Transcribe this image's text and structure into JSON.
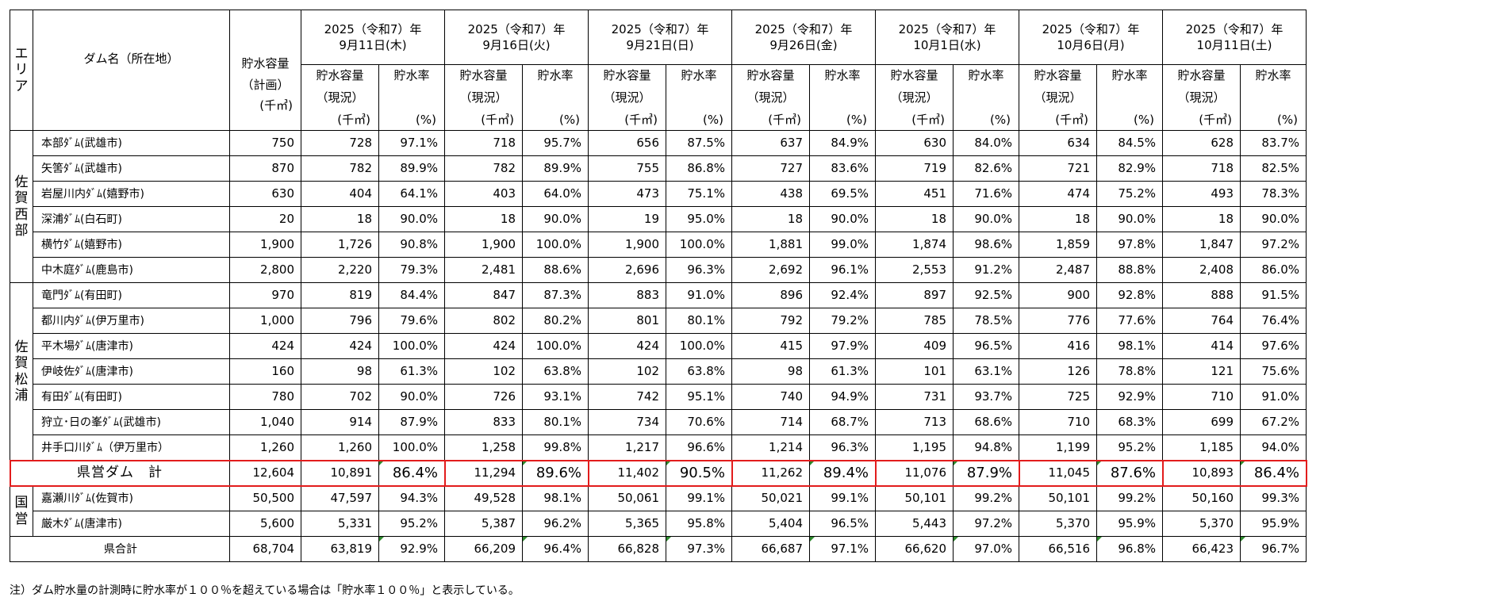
{
  "header": {
    "area_label": "エリア",
    "dam_label": "ダム名（所在地）",
    "plan_capacity_line1": "貯水容量",
    "plan_capacity_line2": "（計画）",
    "capacity_line1": "貯水容量",
    "capacity_line2": "（現況）",
    "rate_label": "貯水率",
    "unit_volume": "(千㎥)",
    "unit_percent": "(%)",
    "dates": [
      {
        "year": "2025（令和7）年",
        "day": "9月11日(木)"
      },
      {
        "year": "2025（令和7）年",
        "day": "9月16日(火)"
      },
      {
        "year": "2025（令和7）年",
        "day": "9月21日(日)"
      },
      {
        "year": "2025（令和7）年",
        "day": "9月26日(金)"
      },
      {
        "year": "2025（令和7）年",
        "day": "10月1日(水)"
      },
      {
        "year": "2025（令和7）年",
        "day": "10月6日(月)"
      },
      {
        "year": "2025（令和7）年",
        "day": "10月11日(土)"
      }
    ]
  },
  "groups": [
    {
      "area": "佐賀西部",
      "rows": [
        {
          "dam": "本部ﾀﾞﾑ(武雄市)",
          "plan": "750",
          "values": [
            [
              "728",
              "97.1%"
            ],
            [
              "718",
              "95.7%"
            ],
            [
              "656",
              "87.5%"
            ],
            [
              "637",
              "84.9%"
            ],
            [
              "630",
              "84.0%"
            ],
            [
              "634",
              "84.5%"
            ],
            [
              "628",
              "83.7%"
            ]
          ]
        },
        {
          "dam": "矢筈ﾀﾞﾑ(武雄市)",
          "plan": "870",
          "values": [
            [
              "782",
              "89.9%"
            ],
            [
              "782",
              "89.9%"
            ],
            [
              "755",
              "86.8%"
            ],
            [
              "727",
              "83.6%"
            ],
            [
              "719",
              "82.6%"
            ],
            [
              "721",
              "82.9%"
            ],
            [
              "718",
              "82.5%"
            ]
          ]
        },
        {
          "dam": "岩屋川内ﾀﾞﾑ(嬉野市)",
          "plan": "630",
          "values": [
            [
              "404",
              "64.1%"
            ],
            [
              "403",
              "64.0%"
            ],
            [
              "473",
              "75.1%"
            ],
            [
              "438",
              "69.5%"
            ],
            [
              "451",
              "71.6%"
            ],
            [
              "474",
              "75.2%"
            ],
            [
              "493",
              "78.3%"
            ]
          ]
        },
        {
          "dam": "深浦ﾀﾞﾑ(白石町)",
          "plan": "20",
          "values": [
            [
              "18",
              "90.0%"
            ],
            [
              "18",
              "90.0%"
            ],
            [
              "19",
              "95.0%"
            ],
            [
              "18",
              "90.0%"
            ],
            [
              "18",
              "90.0%"
            ],
            [
              "18",
              "90.0%"
            ],
            [
              "18",
              "90.0%"
            ]
          ]
        },
        {
          "dam": "横竹ﾀﾞﾑ(嬉野市)",
          "plan": "1,900",
          "values": [
            [
              "1,726",
              "90.8%"
            ],
            [
              "1,900",
              "100.0%"
            ],
            [
              "1,900",
              "100.0%"
            ],
            [
              "1,881",
              "99.0%"
            ],
            [
              "1,874",
              "98.6%"
            ],
            [
              "1,859",
              "97.8%"
            ],
            [
              "1,847",
              "97.2%"
            ]
          ]
        },
        {
          "dam": "中木庭ﾀﾞﾑ(鹿島市)",
          "plan": "2,800",
          "values": [
            [
              "2,220",
              "79.3%"
            ],
            [
              "2,481",
              "88.6%"
            ],
            [
              "2,696",
              "96.3%"
            ],
            [
              "2,692",
              "96.1%"
            ],
            [
              "2,553",
              "91.2%"
            ],
            [
              "2,487",
              "88.8%"
            ],
            [
              "2,408",
              "86.0%"
            ]
          ]
        }
      ]
    },
    {
      "area": "佐賀松浦",
      "rows": [
        {
          "dam": "竜門ﾀﾞﾑ(有田町)",
          "plan": "970",
          "values": [
            [
              "819",
              "84.4%"
            ],
            [
              "847",
              "87.3%"
            ],
            [
              "883",
              "91.0%"
            ],
            [
              "896",
              "92.4%"
            ],
            [
              "897",
              "92.5%"
            ],
            [
              "900",
              "92.8%"
            ],
            [
              "888",
              "91.5%"
            ]
          ]
        },
        {
          "dam": "都川内ﾀﾞﾑ(伊万里市)",
          "plan": "1,000",
          "values": [
            [
              "796",
              "79.6%"
            ],
            [
              "802",
              "80.2%"
            ],
            [
              "801",
              "80.1%"
            ],
            [
              "792",
              "79.2%"
            ],
            [
              "785",
              "78.5%"
            ],
            [
              "776",
              "77.6%"
            ],
            [
              "764",
              "76.4%"
            ]
          ]
        },
        {
          "dam": "平木場ﾀﾞﾑ(唐津市)",
          "plan": "424",
          "values": [
            [
              "424",
              "100.0%"
            ],
            [
              "424",
              "100.0%"
            ],
            [
              "424",
              "100.0%"
            ],
            [
              "415",
              "97.9%"
            ],
            [
              "409",
              "96.5%"
            ],
            [
              "416",
              "98.1%"
            ],
            [
              "414",
              "97.6%"
            ]
          ]
        },
        {
          "dam": "伊岐佐ﾀﾞﾑ(唐津市)",
          "plan": "160",
          "values": [
            [
              "98",
              "61.3%"
            ],
            [
              "102",
              "63.8%"
            ],
            [
              "102",
              "63.8%"
            ],
            [
              "98",
              "61.3%"
            ],
            [
              "101",
              "63.1%"
            ],
            [
              "126",
              "78.8%"
            ],
            [
              "121",
              "75.6%"
            ]
          ]
        },
        {
          "dam": "有田ﾀﾞﾑ(有田町)",
          "plan": "780",
          "values": [
            [
              "702",
              "90.0%"
            ],
            [
              "726",
              "93.1%"
            ],
            [
              "742",
              "95.1%"
            ],
            [
              "740",
              "94.9%"
            ],
            [
              "731",
              "93.7%"
            ],
            [
              "725",
              "92.9%"
            ],
            [
              "710",
              "91.0%"
            ]
          ]
        },
        {
          "dam": "狩立･日の峯ﾀﾞﾑ(武雄市)",
          "plan": "1,040",
          "values": [
            [
              "914",
              "87.9%"
            ],
            [
              "833",
              "80.1%"
            ],
            [
              "734",
              "70.6%"
            ],
            [
              "714",
              "68.7%"
            ],
            [
              "713",
              "68.6%"
            ],
            [
              "710",
              "68.3%"
            ],
            [
              "699",
              "67.2%"
            ]
          ]
        },
        {
          "dam": "井手口川ﾀﾞﾑ（伊万里市）",
          "plan": "1,260",
          "values": [
            [
              "1,260",
              "100.0%"
            ],
            [
              "1,258",
              "99.8%"
            ],
            [
              "1,217",
              "96.6%"
            ],
            [
              "1,214",
              "96.3%"
            ],
            [
              "1,195",
              "94.8%"
            ],
            [
              "1,199",
              "95.2%"
            ],
            [
              "1,185",
              "94.0%"
            ]
          ]
        }
      ]
    }
  ],
  "kenei_total": {
    "label": "県営ダム　計",
    "plan": "12,604",
    "values": [
      [
        "10,891",
        "86.4%"
      ],
      [
        "11,294",
        "89.6%"
      ],
      [
        "11,402",
        "90.5%"
      ],
      [
        "11,262",
        "89.4%"
      ],
      [
        "11,076",
        "87.9%"
      ],
      [
        "11,045",
        "87.6%"
      ],
      [
        "10,893",
        "86.4%"
      ]
    ]
  },
  "national": {
    "area": "国営",
    "rows": [
      {
        "dam": "嘉瀬川ﾀﾞﾑ(佐賀市)",
        "plan": "50,500",
        "values": [
          [
            "47,597",
            "94.3%"
          ],
          [
            "49,528",
            "98.1%"
          ],
          [
            "50,061",
            "99.1%"
          ],
          [
            "50,021",
            "99.1%"
          ],
          [
            "50,101",
            "99.2%"
          ],
          [
            "50,101",
            "99.2%"
          ],
          [
            "50,160",
            "99.3%"
          ]
        ]
      },
      {
        "dam": "厳木ﾀﾞﾑ(唐津市)",
        "plan": "5,600",
        "values": [
          [
            "5,331",
            "95.2%"
          ],
          [
            "5,387",
            "96.2%"
          ],
          [
            "5,365",
            "95.8%"
          ],
          [
            "5,404",
            "96.5%"
          ],
          [
            "5,443",
            "97.2%"
          ],
          [
            "5,370",
            "95.9%"
          ],
          [
            "5,370",
            "95.9%"
          ]
        ]
      }
    ]
  },
  "prefecture_total": {
    "label": "県合計",
    "plan": "68,704",
    "values": [
      [
        "63,819",
        "92.9%"
      ],
      [
        "66,209",
        "96.4%"
      ],
      [
        "66,828",
        "97.3%"
      ],
      [
        "66,687",
        "97.1%"
      ],
      [
        "66,620",
        "97.0%"
      ],
      [
        "66,516",
        "96.8%"
      ],
      [
        "66,423",
        "96.7%"
      ]
    ]
  },
  "note": "注）ダム貯水量の計測時に貯水率が１００％を超えている場合は「貯水率１００％」と表示している。",
  "colors": {
    "highlight_border": "#e21c1c",
    "formula_marker": "#2e8b2e"
  }
}
